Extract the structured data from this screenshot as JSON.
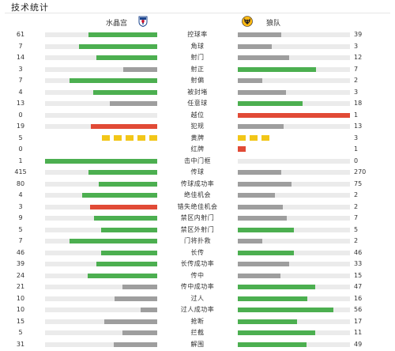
{
  "header": {
    "title": "技术统计"
  },
  "teams": {
    "home": "水晶宫",
    "away": "狼队"
  },
  "icons": {
    "home_crest": "crystal-palace-crest-icon",
    "away_crest": "wolves-crest-icon"
  },
  "colors": {
    "green": "#4caf50",
    "gray": "#9e9e9e",
    "red": "#e14a36",
    "yellow": "#f2c618",
    "track": "#ebebeb"
  },
  "stats": [
    {
      "label": "控球率",
      "home": "61",
      "away": "39",
      "home_level": 0.61,
      "away_level": 0.39,
      "home_color": "green",
      "away_color": "gray"
    },
    {
      "label": "角球",
      "home": "7",
      "away": "3",
      "home_level": 0.7,
      "away_level": 0.3,
      "home_color": "green",
      "away_color": "gray"
    },
    {
      "label": "射门",
      "home": "14",
      "away": "12",
      "home_level": 0.54,
      "away_level": 0.46,
      "home_color": "green",
      "away_color": "gray"
    },
    {
      "label": "射正",
      "home": "3",
      "away": "7",
      "home_level": 0.3,
      "away_level": 0.7,
      "home_color": "gray",
      "away_color": "green"
    },
    {
      "label": "射偏",
      "home": "7",
      "away": "2",
      "home_level": 0.78,
      "away_level": 0.22,
      "home_color": "green",
      "away_color": "gray"
    },
    {
      "label": "被封堵",
      "home": "4",
      "away": "3",
      "home_level": 0.57,
      "away_level": 0.43,
      "home_color": "green",
      "away_color": "gray"
    },
    {
      "label": "任意球",
      "home": "13",
      "away": "18",
      "home_level": 0.42,
      "away_level": 0.58,
      "home_color": "gray",
      "away_color": "green"
    },
    {
      "label": "越位",
      "home": "0",
      "away": "1",
      "home_level": 0.0,
      "away_level": 1.0,
      "home_color": "gray",
      "away_color": "red"
    },
    {
      "label": "犯规",
      "home": "19",
      "away": "13",
      "home_level": 0.59,
      "away_level": 0.41,
      "home_color": "red",
      "away_color": "gray"
    },
    {
      "label": "黄牌",
      "home": "5",
      "away": "3",
      "cards": "yellow"
    },
    {
      "label": "红牌",
      "home": "0",
      "away": "1",
      "cards": "red"
    },
    {
      "label": "击中门框",
      "home": "1",
      "away": "0",
      "home_level": 1.0,
      "away_level": 0.0,
      "home_color": "green",
      "away_color": "gray"
    },
    {
      "label": "传球",
      "home": "415",
      "away": "270",
      "home_level": 0.61,
      "away_level": 0.39,
      "home_color": "green",
      "away_color": "gray"
    },
    {
      "label": "传球成功率",
      "home": "80",
      "away": "75",
      "home_level": 0.52,
      "away_level": 0.48,
      "home_color": "green",
      "away_color": "gray"
    },
    {
      "label": "绝佳机会",
      "home": "4",
      "away": "2",
      "home_level": 0.67,
      "away_level": 0.33,
      "home_color": "green",
      "away_color": "gray"
    },
    {
      "label": "错失绝佳机会",
      "home": "3",
      "away": "2",
      "home_level": 0.6,
      "away_level": 0.4,
      "home_color": "red",
      "away_color": "gray"
    },
    {
      "label": "禁区内射门",
      "home": "9",
      "away": "7",
      "home_level": 0.56,
      "away_level": 0.44,
      "home_color": "green",
      "away_color": "gray"
    },
    {
      "label": "禁区外射门",
      "home": "5",
      "away": "5",
      "home_level": 0.5,
      "away_level": 0.5,
      "home_color": "green",
      "away_color": "green"
    },
    {
      "label": "门将扑救",
      "home": "7",
      "away": "2",
      "home_level": 0.78,
      "away_level": 0.22,
      "home_color": "green",
      "away_color": "gray"
    },
    {
      "label": "长传",
      "home": "46",
      "away": "46",
      "home_level": 0.5,
      "away_level": 0.5,
      "home_color": "green",
      "away_color": "green"
    },
    {
      "label": "长传成功率",
      "home": "39",
      "away": "33",
      "home_level": 0.54,
      "away_level": 0.46,
      "home_color": "green",
      "away_color": "gray"
    },
    {
      "label": "传中",
      "home": "24",
      "away": "15",
      "home_level": 0.62,
      "away_level": 0.38,
      "home_color": "green",
      "away_color": "gray"
    },
    {
      "label": "传中成功率",
      "home": "21",
      "away": "47",
      "home_level": 0.31,
      "away_level": 0.69,
      "home_color": "gray",
      "away_color": "green"
    },
    {
      "label": "过人",
      "home": "10",
      "away": "16",
      "home_level": 0.38,
      "away_level": 0.62,
      "home_color": "gray",
      "away_color": "green"
    },
    {
      "label": "过人成功率",
      "home": "10",
      "away": "56",
      "home_level": 0.15,
      "away_level": 0.85,
      "home_color": "gray",
      "away_color": "green"
    },
    {
      "label": "抢断",
      "home": "15",
      "away": "17",
      "home_level": 0.47,
      "away_level": 0.53,
      "home_color": "gray",
      "away_color": "green"
    },
    {
      "label": "拦截",
      "home": "5",
      "away": "11",
      "home_level": 0.31,
      "away_level": 0.69,
      "home_color": "gray",
      "away_color": "green"
    },
    {
      "label": "解围",
      "home": "31",
      "away": "49",
      "home_level": 0.39,
      "away_level": 0.61,
      "home_color": "gray",
      "away_color": "green"
    }
  ]
}
